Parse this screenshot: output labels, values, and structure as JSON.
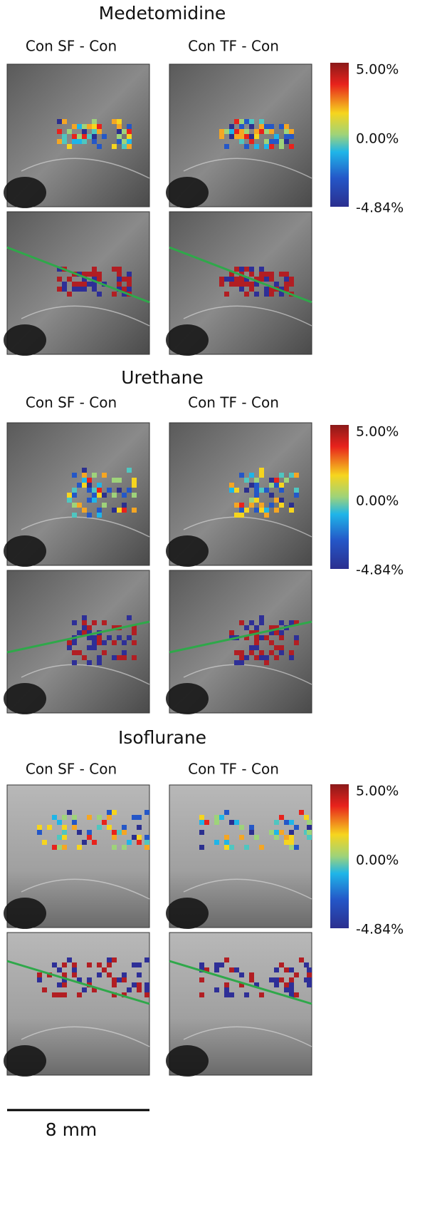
{
  "sections": [
    {
      "title": "Medetomidine",
      "columns": [
        "Con SF - Con",
        "Con TF - Con"
      ],
      "colorbar": {
        "max": "5.00%",
        "mid": "0.00%",
        "min": "-4.84%"
      }
    },
    {
      "title": "Urethane",
      "columns": [
        "Con SF - Con",
        "Con TF - Con"
      ],
      "colorbar": {
        "max": "5.00%",
        "mid": "0.00%",
        "min": "-4.84%"
      }
    },
    {
      "title": "Isoflurane",
      "columns": [
        "Con SF - Con",
        "Con TF - Con"
      ],
      "colorbar": {
        "max": "5.00%",
        "mid": "0.00%",
        "min": "-4.84%"
      }
    }
  ],
  "scale_bar": {
    "label": "8 mm"
  }
}
